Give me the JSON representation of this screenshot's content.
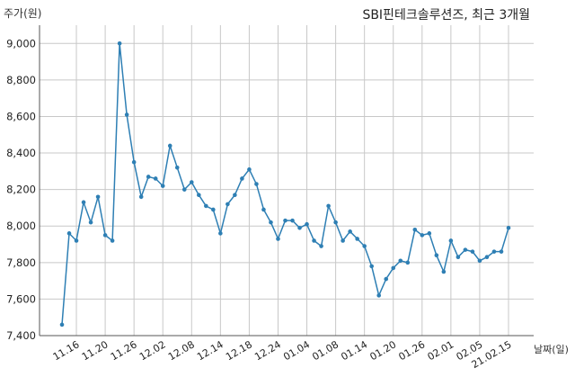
{
  "chart_data": {
    "type": "line",
    "title": "SBI핀테크솔루션즈, 최근 3개월",
    "ylabel": "주가(원)",
    "xlabel": "날짜(일)",
    "ylim": [
      7400,
      9100
    ],
    "yticks": [
      7400,
      7600,
      7800,
      8000,
      8200,
      8400,
      8600,
      8800,
      9000
    ],
    "ytick_labels": [
      "7,400",
      "7,600",
      "7,800",
      "8,000",
      "8,200",
      "8,400",
      "8,600",
      "8,800",
      "9,000"
    ],
    "xtick_labels": [
      "11.16",
      "11.20",
      "11.26",
      "12.02",
      "12.08",
      "12.14",
      "12.18",
      "12.24",
      "01.04",
      "01.08",
      "01.14",
      "01.20",
      "01.26",
      "02.01",
      "02.05",
      "21.02.15"
    ],
    "xtick_index": [
      2,
      6,
      10,
      14,
      18,
      22,
      26,
      30,
      34,
      38,
      42,
      46,
      50,
      54,
      58,
      62
    ],
    "grid": true,
    "color": "#2e7fb4",
    "values": [
      7460,
      7960,
      7920,
      8130,
      8020,
      8160,
      7950,
      7920,
      9000,
      8610,
      8350,
      8160,
      8270,
      8260,
      8220,
      8440,
      8320,
      8200,
      8240,
      8170,
      8110,
      8090,
      7960,
      8120,
      8170,
      8260,
      8310,
      8230,
      8090,
      8020,
      7930,
      8030,
      8030,
      7990,
      8010,
      7920,
      7890,
      8110,
      8020,
      7920,
      7970,
      7930,
      7890,
      7780,
      7620,
      7710,
      7770,
      7810,
      7800,
      7980,
      7950,
      7960,
      7840,
      7750,
      7920,
      7830,
      7870,
      7860,
      7810,
      7830,
      7860,
      7860,
      7990
    ]
  }
}
